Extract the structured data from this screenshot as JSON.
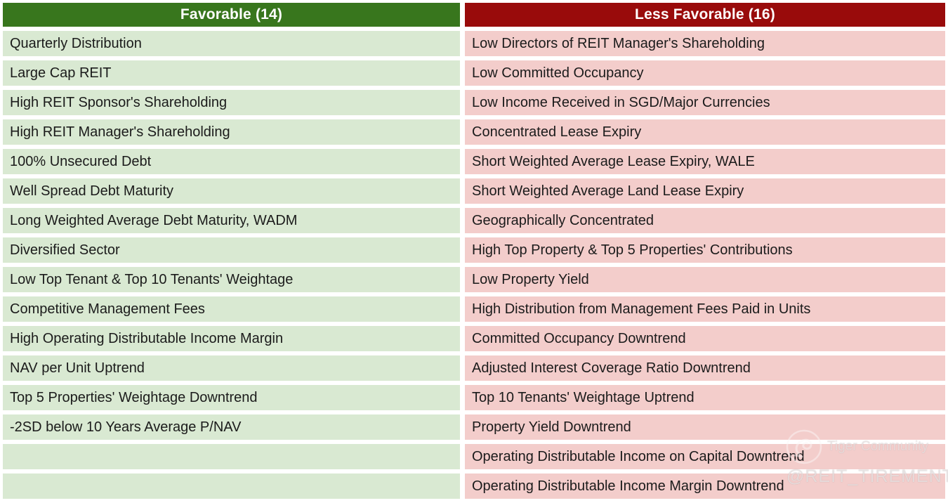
{
  "table": {
    "columns": [
      {
        "id": "favorable",
        "header": "Favorable (14)",
        "count": 14,
        "items": [
          "Quarterly Distribution",
          "Large Cap REIT",
          "High REIT Sponsor's Shareholding",
          "High REIT Manager's Shareholding",
          "100% Unsecured Debt",
          "Well Spread Debt Maturity",
          "Long Weighted Average Debt Maturity, WADM",
          "Diversified Sector",
          "Low Top Tenant & Top 10 Tenants' Weightage",
          "Competitive Management Fees",
          "High Operating Distributable Income Margin",
          "NAV per Unit Uptrend",
          "Top 5 Properties' Weightage Downtrend",
          "-2SD below 10 Years Average P/NAV",
          "",
          ""
        ]
      },
      {
        "id": "less_favorable",
        "header": "Less Favorable (16)",
        "count": 16,
        "items": [
          "Low Directors of REIT Manager's Shareholding",
          "Low Committed Occupancy",
          "Low Income Received in SGD/Major Currencies",
          "Concentrated Lease Expiry",
          "Short Weighted Average Lease Expiry, WALE",
          "Short Weighted Average Land Lease Expiry",
          "Geographically Concentrated",
          "High Top Property & Top 5 Properties' Contributions",
          "Low Property Yield",
          "High Distribution from Management Fees Paid in Units",
          "Committed Occupancy Downtrend",
          "Adjusted Interest Coverage Ratio Downtrend",
          "Top 10 Tenants' Weightage Uptrend",
          "Property Yield Downtrend",
          "Operating Distributable Income on Capital Downtrend",
          "Operating Distributable Income Margin Downtrend"
        ]
      }
    ]
  },
  "watermark": {
    "logo": "tiger-circle-logo",
    "brand": "Tiger Community",
    "handle": "@REIT_TIREMENT"
  },
  "colors": {
    "favorable_header_bg": "#38761D",
    "favorable_row_bg": "#D9E9D2",
    "less_favorable_header_bg": "#990B0B",
    "less_favorable_row_bg": "#F3CDCB",
    "header_text": "#FFFFFF",
    "row_text": "#1B1B1B"
  }
}
